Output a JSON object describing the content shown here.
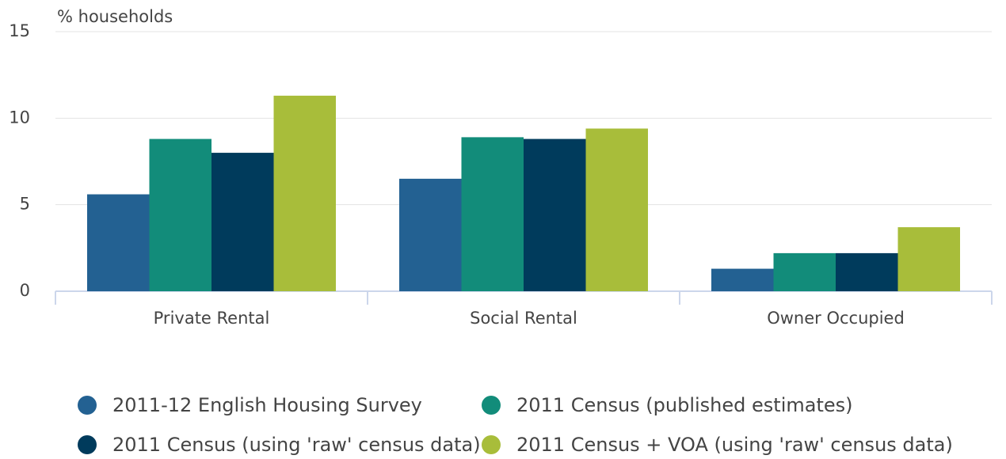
{
  "chart_data": {
    "type": "bar",
    "y_label": "% households",
    "categories": [
      "Private Rental",
      "Social Rental",
      "Owner Occupied"
    ],
    "series": [
      {
        "name": "2011-12 English Housing Survey",
        "color": "#236192",
        "values": [
          5.6,
          6.5,
          1.3
        ]
      },
      {
        "name": "2011 Census (published estimates)",
        "color": "#128c7a",
        "values": [
          8.8,
          8.9,
          2.2
        ]
      },
      {
        "name": "2011 Census (using 'raw' census data)",
        "color": "#003b5c",
        "values": [
          8.0,
          8.8,
          2.2
        ]
      },
      {
        "name": "2011 Census + VOA (using 'raw' census data)",
        "color": "#a8bd3a",
        "values": [
          11.3,
          9.4,
          3.7
        ]
      }
    ],
    "ylim": [
      0,
      15
    ],
    "yticks": [
      0,
      5,
      10,
      15
    ],
    "grid": true,
    "legend": "bottom"
  }
}
